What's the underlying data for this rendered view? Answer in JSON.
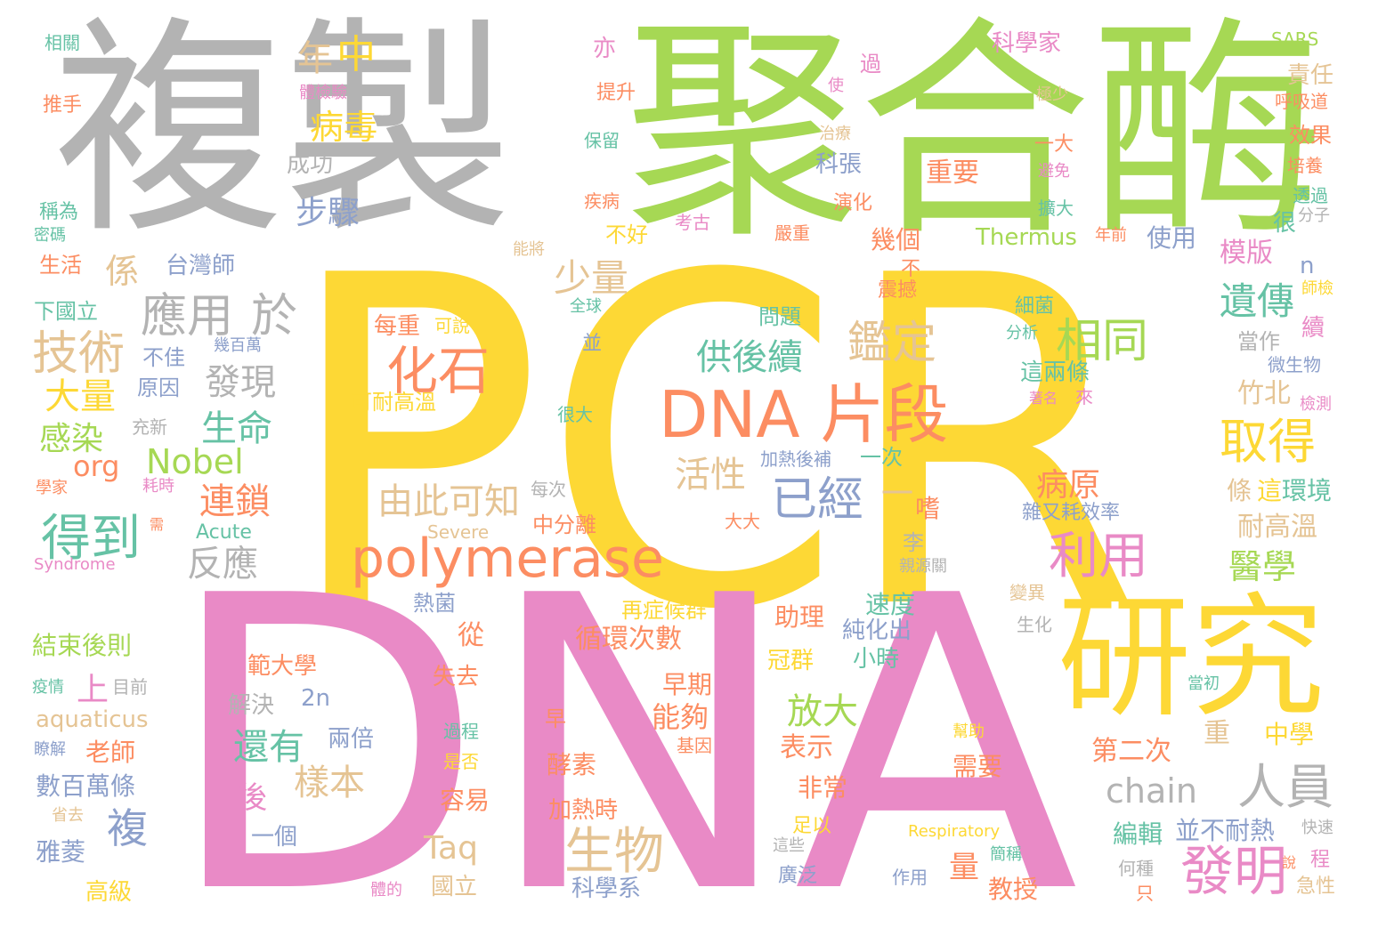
{
  "colors": {
    "yellow": "#FDD835",
    "pink": "#E98AC6",
    "green": "#A6D854",
    "gray": "#B3B3B3",
    "orange": "#FC8D62",
    "blue": "#8DA0CB",
    "teal": "#66C2A5",
    "tan": "#E5C494"
  },
  "words": [
    "PCR",
    "DNA",
    "複製",
    "聚合酶",
    "研究",
    "DNA 片段",
    "polymerase",
    "化石",
    "人員",
    "發明",
    "得到",
    "技術",
    "應用",
    "於",
    "相同",
    "利用",
    "取得",
    "生物",
    "已經",
    "鑑定",
    "病毒",
    "年",
    "中",
    "供後續",
    "由此可知",
    "反應",
    "連鎖",
    "生命",
    "發現",
    "少量",
    "遺傳",
    "活性",
    "chain",
    "複",
    "樣本",
    "還有",
    "放大",
    "循環次數",
    "能夠",
    "病原",
    "醫學",
    "大量",
    "感染",
    "Nobel",
    "org",
    "係",
    "步驟",
    "成功",
    "科張",
    "重要",
    "Thermus",
    "使用",
    "模版",
    "n",
    "當作",
    "竹北",
    "耐高溫",
    "條",
    "這",
    "環境",
    "表示",
    "非常",
    "加熱時",
    "酵素",
    "容易",
    "國立",
    "科學系",
    "量",
    "教授",
    "編輯",
    "並不耐熱",
    "第二次",
    "重",
    "中學",
    "需要",
    "速度",
    "純化出",
    "小時",
    "早期",
    "助理",
    "冠群",
    "範大學",
    "失去",
    "上",
    "數百萬條",
    "老師",
    "雅菱",
    "高級",
    "aquaticus",
    "解決",
    "2n",
    "兩倍",
    "後",
    "一個",
    "Taq",
    "從",
    "一",
    "嗜",
    "李",
    "台灣師",
    "原因",
    "不佳",
    "幾百萬",
    "下國立",
    "生活",
    "稱為",
    "密碼",
    "推手",
    "相關",
    "亦",
    "提升",
    "保留",
    "過",
    "體檢驗",
    "科學家",
    "SARS",
    "極少",
    "責任",
    "呼吸道",
    "使",
    "治療",
    "一大",
    "避免",
    "效果",
    "培養",
    "透過",
    "分子",
    "很",
    "擴大",
    "演化",
    "考古",
    "疾病",
    "不好",
    "能將",
    "嚴重",
    "幾個",
    "不",
    "震撼",
    "年前",
    "細菌",
    "分析",
    "這兩條",
    "問題",
    "全球",
    "並",
    "每重",
    "可說",
    "可耐高溫",
    "師檢",
    "續",
    "微生物",
    "檢測",
    "著名",
    "來",
    "很大",
    "加熱後補",
    "一次",
    "雜又耗效率",
    "中分離",
    "每次",
    "大大",
    "Severe",
    "Acute",
    "Syndrome",
    "學家",
    "耗時",
    "需",
    "充新",
    "結束後則",
    "疫情",
    "目前",
    "瞭解",
    "省去",
    "過程",
    "是否",
    "早",
    "基因",
    "幫助",
    "再症候群",
    "熱菌",
    "生化",
    "變異",
    "親源關",
    "當初",
    "足以",
    "這些",
    "Respiratory",
    "廣泛",
    "作用",
    "簡稱",
    "何種",
    "只",
    "急性",
    "程",
    "快速",
    "體的",
    "說"
  ]
}
